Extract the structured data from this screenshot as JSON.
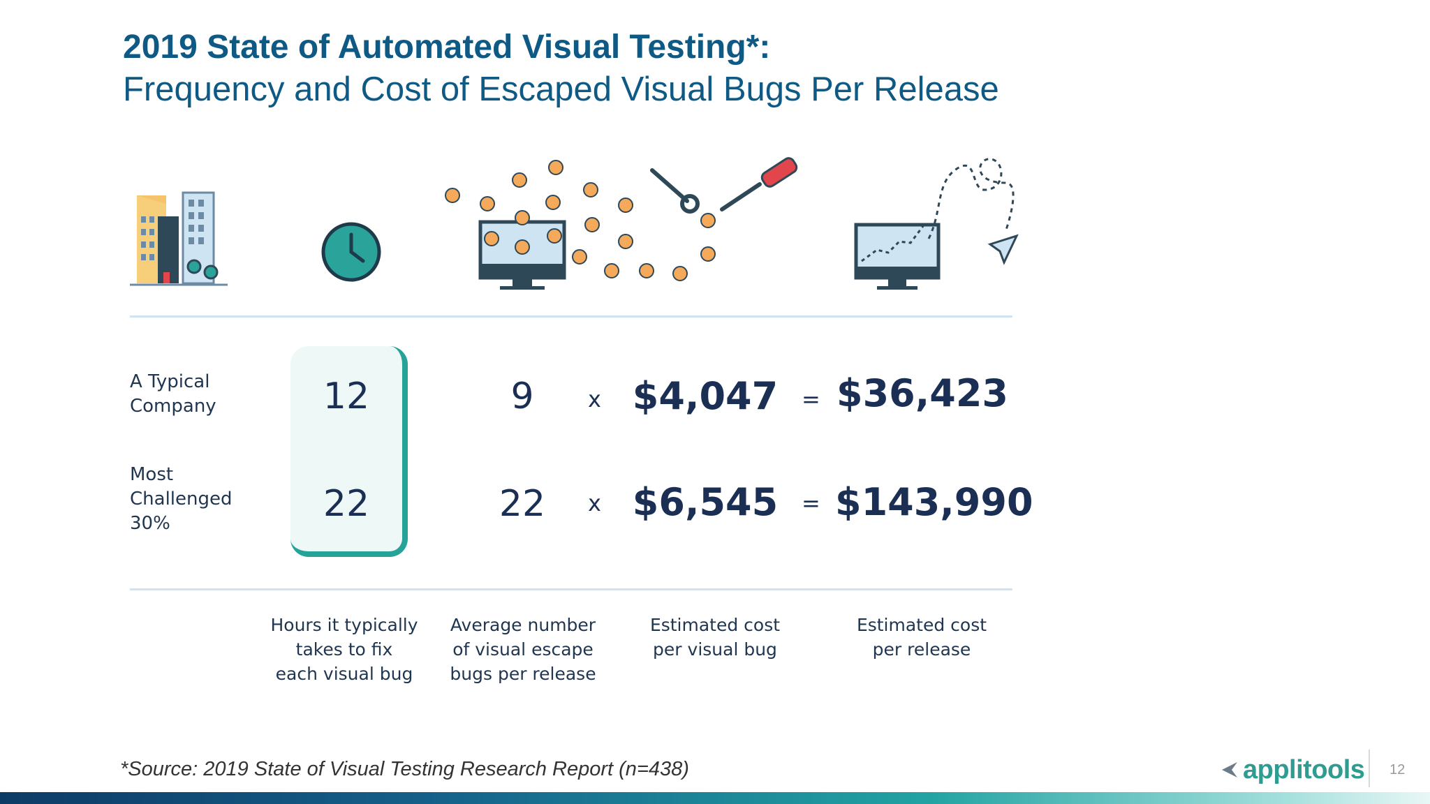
{
  "title": {
    "line1": "2019 State of Automated Visual Testing*:",
    "line2": "Frequency and Cost of Escaped Visual Bugs Per Release"
  },
  "rows": [
    {
      "label": "A Typical\nCompany",
      "hours": "12",
      "bugs": "9",
      "cost_per_bug": "$4,047",
      "cost_per_release": "$36,423"
    },
    {
      "label": "Most\nChallenged\n30%",
      "hours": "22",
      "bugs": "22",
      "cost_per_bug": "$6,545",
      "cost_per_release": "$143,990"
    }
  ],
  "operators": {
    "multiply": "x",
    "equals": "="
  },
  "captions": {
    "hours": "Hours it typically\ntakes to fix\neach visual bug",
    "bugs": "Average number\nof visual escape\nbugs per release",
    "cost_per_bug": "Estimated cost\nper visual bug",
    "cost_per_release": "Estimated cost\nper release"
  },
  "icons": [
    "buildings-icon",
    "clock-icon",
    "monitor-with-bugs-icon",
    "wrench-icon",
    "screwdriver-icon",
    "monitor-chart-icon",
    "paper-plane-icon"
  ],
  "footer": {
    "source": "*Source: 2019 State of Visual Testing Research Report (n=438)",
    "logo": "applitools",
    "page": "12"
  },
  "colors": {
    "title": "#0f5a85",
    "accent": "#26a398",
    "text": "#1b2f55"
  }
}
